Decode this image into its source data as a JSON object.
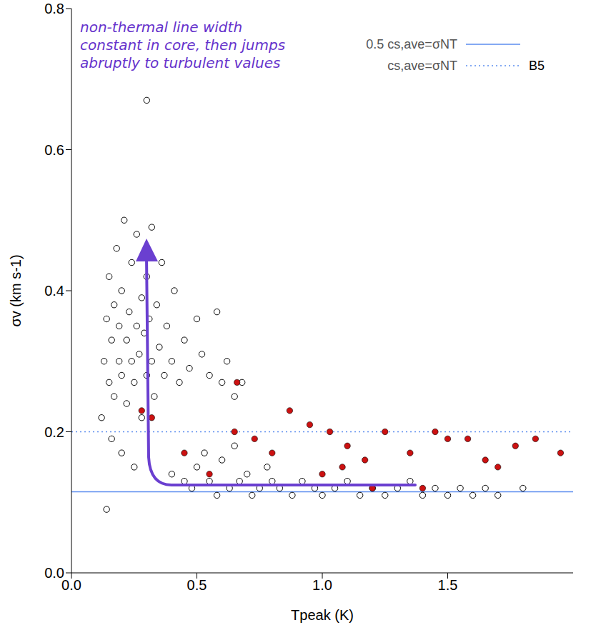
{
  "chart_data": {
    "type": "scatter",
    "title": "B5",
    "x_label": "Tpeak (K)",
    "y_label": "σv (km s-1)",
    "annotation": "non-thermal line width constant in core, then jumps abruptly to turbulent values",
    "xlim": [
      0,
      2.0
    ],
    "xticks": [
      {
        "value": 0,
        "label": "0.0"
      },
      0.5,
      {
        "value": 1,
        "label": "1.0"
      },
      1.5
    ],
    "ylim": [
      0,
      0.8
    ],
    "yticks": [
      {
        "value": 0,
        "label": "0.0"
      },
      0.2,
      0.4,
      0.6,
      0.8
    ],
    "grid": false,
    "series": [
      {
        "color": "#000000",
        "marker": "open_circle",
        "x": [
          0.12,
          0.13,
          0.14,
          0.15,
          0.15,
          0.16,
          0.17,
          0.17,
          0.18,
          0.19,
          0.19,
          0.2,
          0.2,
          0.21,
          0.22,
          0.22,
          0.23,
          0.24,
          0.24,
          0.25,
          0.26,
          0.26,
          0.27,
          0.28,
          0.28,
          0.29,
          0.3,
          0.3,
          0.31,
          0.32,
          0.32,
          0.33,
          0.34,
          0.35,
          0.36,
          0.37,
          0.38,
          0.4,
          0.41,
          0.43,
          0.45,
          0.47,
          0.5,
          0.52,
          0.55,
          0.58,
          0.6,
          0.62,
          0.65,
          0.68,
          0.3,
          0.16,
          0.2,
          0.25,
          0.14,
          0.4,
          0.45,
          0.48,
          0.5,
          0.55,
          0.58,
          0.6,
          0.63,
          0.67,
          0.7,
          0.72,
          0.75,
          0.8,
          0.83,
          0.88,
          0.92,
          0.97,
          1.0,
          1.05,
          1.1,
          1.15,
          1.2,
          1.25,
          1.3,
          1.35,
          1.4,
          1.45,
          1.5,
          1.55,
          1.6,
          1.65,
          1.7,
          1.8,
          0.53,
          0.65,
          0.78
        ],
        "values": [
          0.22,
          0.3,
          0.36,
          0.27,
          0.42,
          0.33,
          0.25,
          0.38,
          0.46,
          0.3,
          0.35,
          0.28,
          0.4,
          0.5,
          0.33,
          0.24,
          0.37,
          0.3,
          0.44,
          0.27,
          0.35,
          0.48,
          0.31,
          0.39,
          0.22,
          0.34,
          0.28,
          0.42,
          0.36,
          0.49,
          0.3,
          0.25,
          0.38,
          0.32,
          0.44,
          0.28,
          0.35,
          0.3,
          0.4,
          0.27,
          0.33,
          0.29,
          0.36,
          0.31,
          0.28,
          0.37,
          0.27,
          0.3,
          0.25,
          0.27,
          0.67,
          0.19,
          0.17,
          0.15,
          0.09,
          0.14,
          0.13,
          0.12,
          0.15,
          0.13,
          0.11,
          0.16,
          0.12,
          0.13,
          0.14,
          0.11,
          0.12,
          0.13,
          0.12,
          0.11,
          0.13,
          0.12,
          0.11,
          0.12,
          0.13,
          0.11,
          0.12,
          0.11,
          0.12,
          0.13,
          0.11,
          0.12,
          0.11,
          0.12,
          0.11,
          0.12,
          0.11,
          0.12,
          0.17,
          0.18,
          0.15
        ]
      },
      {
        "color": "#cc1111",
        "marker": "filled_circle",
        "x": [
          0.28,
          0.32,
          0.45,
          0.55,
          0.65,
          0.66,
          0.73,
          0.8,
          0.87,
          0.95,
          1.0,
          1.03,
          1.08,
          1.1,
          1.17,
          1.2,
          1.25,
          1.35,
          1.4,
          1.45,
          1.5,
          1.58,
          1.65,
          1.7,
          1.77,
          1.85,
          1.95
        ],
        "values": [
          0.23,
          0.22,
          0.17,
          0.14,
          0.2,
          0.27,
          0.19,
          0.17,
          0.23,
          0.21,
          0.14,
          0.2,
          0.15,
          0.18,
          0.16,
          0.12,
          0.2,
          0.17,
          0.12,
          0.2,
          0.19,
          0.19,
          0.16,
          0.15,
          0.18,
          0.19,
          0.17
        ]
      }
    ],
    "reference_lines": [
      {
        "label": "0.5 cs,ave=σNT",
        "value": 0.115,
        "color": "#5b8def",
        "line_style": "solid"
      },
      {
        "label": "cs,ave=σNT",
        "value": 0.2,
        "color": "#5b8def",
        "line_style": "dotted"
      }
    ]
  }
}
